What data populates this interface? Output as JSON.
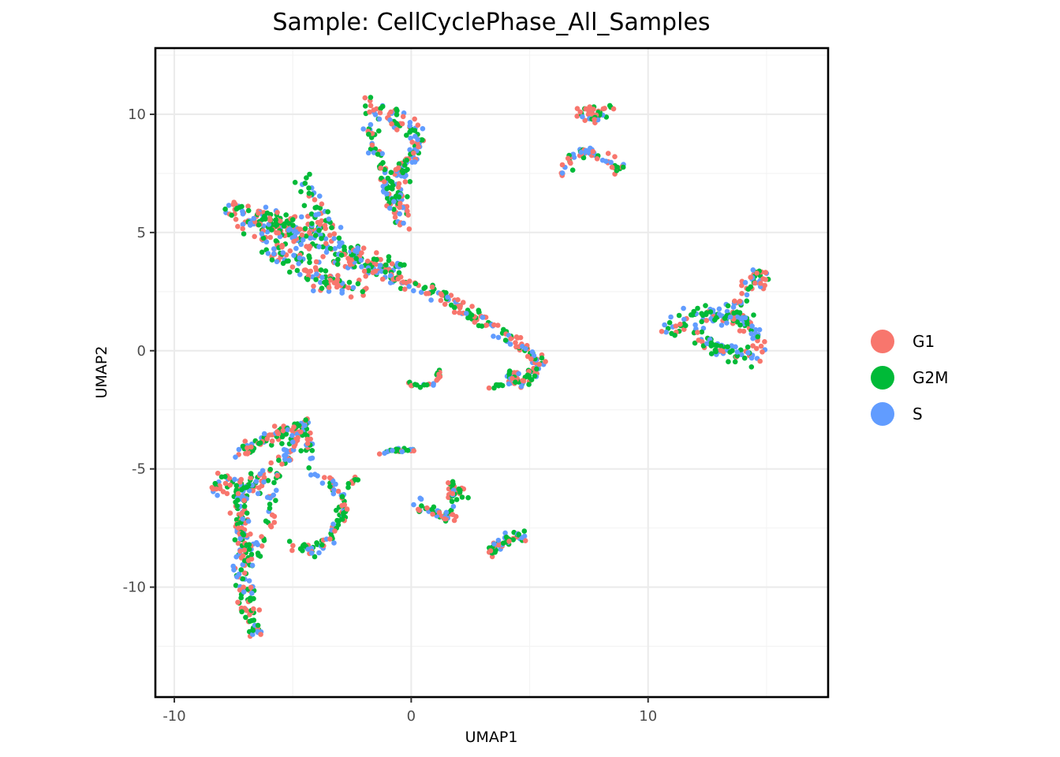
{
  "chart_data": {
    "type": "scatter",
    "title": "Sample: CellCyclePhase_All_Samples",
    "xlabel": "UMAP1",
    "ylabel": "UMAP2",
    "xlim": [
      -10.8,
      17.6
    ],
    "ylim": [
      -14.65,
      12.8
    ],
    "x_ticks": [
      -10,
      0,
      10
    ],
    "y_ticks": [
      10,
      5,
      0,
      -5,
      -10
    ],
    "x_tick_labels": [
      "-10",
      "0",
      "10"
    ],
    "y_tick_labels": [
      "10",
      "5",
      "0",
      "-5",
      "-10"
    ],
    "grid": true,
    "legend_position": "right",
    "series": [
      {
        "name": "G1",
        "color": "#F8766D"
      },
      {
        "name": "G2M",
        "color": "#00BA38"
      },
      {
        "name": "S",
        "color": "#619CFF"
      }
    ],
    "clusters": [
      {
        "path": [
          [
            -1.8,
            10.4
          ],
          [
            -1.0,
            10.0
          ],
          [
            -0.5,
            9.6
          ],
          [
            0.2,
            9.3
          ],
          [
            0.3,
            8.6
          ],
          [
            -0.2,
            8.0
          ],
          [
            -0.5,
            7.2
          ],
          [
            -0.5,
            6.2
          ],
          [
            -0.3,
            5.4
          ]
        ],
        "n": 150,
        "spread": 0.35,
        "mix": [
          0.35,
          0.35,
          0.3
        ]
      },
      {
        "path": [
          [
            -1.9,
            9.5
          ],
          [
            -1.5,
            8.6
          ],
          [
            -1.2,
            8.0
          ],
          [
            -1.0,
            7.2
          ],
          [
            -0.8,
            6.4
          ],
          [
            -0.6,
            5.6
          ]
        ],
        "n": 60,
        "spread": 0.3,
        "mix": [
          0.3,
          0.4,
          0.3
        ]
      },
      {
        "path": [
          [
            -7.4,
            5.8
          ],
          [
            -6.6,
            5.7
          ],
          [
            -5.6,
            5.3
          ],
          [
            -4.6,
            5.0
          ],
          [
            -3.6,
            4.6
          ],
          [
            -2.6,
            4.0
          ],
          [
            -1.6,
            3.6
          ],
          [
            -0.6,
            3.2
          ]
        ],
        "n": 300,
        "spread": 0.55,
        "mix": [
          0.3,
          0.4,
          0.3
        ]
      },
      {
        "path": [
          [
            -6.2,
            4.8
          ],
          [
            -5.2,
            3.8
          ],
          [
            -4.0,
            3.2
          ],
          [
            -3.0,
            2.8
          ],
          [
            -2.0,
            2.6
          ]
        ],
        "n": 120,
        "spread": 0.4,
        "mix": [
          0.35,
          0.35,
          0.3
        ]
      },
      {
        "path": [
          [
            -4.6,
            7.3
          ],
          [
            -4.3,
            6.6
          ],
          [
            -3.9,
            6.0
          ],
          [
            -3.5,
            5.2
          ]
        ],
        "n": 40,
        "spread": 0.35,
        "mix": [
          0.3,
          0.4,
          0.3
        ]
      },
      {
        "path": [
          [
            -0.6,
            3.0
          ],
          [
            0.6,
            2.6
          ],
          [
            1.6,
            2.2
          ],
          [
            2.6,
            1.5
          ],
          [
            3.4,
            1.0
          ],
          [
            4.2,
            0.4
          ],
          [
            4.9,
            0.1
          ]
        ],
        "n": 110,
        "spread": 0.25,
        "mix": [
          0.35,
          0.4,
          0.25
        ]
      },
      {
        "path": [
          [
            4.8,
            0.2
          ],
          [
            5.4,
            -0.4
          ],
          [
            5.1,
            -1.1
          ],
          [
            4.4,
            -1.4
          ],
          [
            4.1,
            -0.9
          ]
        ],
        "n": 80,
        "spread": 0.25,
        "mix": [
          0.4,
          0.3,
          0.3
        ]
      },
      {
        "path": [
          [
            3.3,
            -1.5
          ],
          [
            3.9,
            -1.5
          ]
        ],
        "n": 8,
        "spread": 0.08,
        "mix": [
          0.1,
          0.9,
          0.0
        ]
      },
      {
        "path": [
          [
            -0.1,
            -1.4
          ],
          [
            0.6,
            -1.45
          ],
          [
            1.1,
            -1.4
          ],
          [
            1.2,
            -0.7
          ]
        ],
        "n": 25,
        "spread": 0.1,
        "mix": [
          0.3,
          0.4,
          0.3
        ]
      },
      {
        "path": [
          [
            7.2,
            10.0
          ],
          [
            7.8,
            9.9
          ],
          [
            8.2,
            10.2
          ]
        ],
        "n": 40,
        "spread": 0.3,
        "mix": [
          0.45,
          0.35,
          0.2
        ]
      },
      {
        "path": [
          [
            6.4,
            7.3
          ],
          [
            6.8,
            8.3
          ],
          [
            7.4,
            8.5
          ],
          [
            8.2,
            8.1
          ],
          [
            8.9,
            7.7
          ]
        ],
        "n": 60,
        "spread": 0.22,
        "mix": [
          0.3,
          0.35,
          0.35
        ]
      },
      {
        "path": [
          [
            10.8,
            0.95
          ],
          [
            11.6,
            1.2
          ],
          [
            12.4,
            1.7
          ],
          [
            13.2,
            1.5
          ],
          [
            14.0,
            1.4
          ],
          [
            14.7,
            0.4
          ],
          [
            14.4,
            -0.2
          ],
          [
            13.4,
            -0.1
          ],
          [
            12.4,
            0.4
          ],
          [
            12.0,
            0.8
          ]
        ],
        "n": 170,
        "spread": 0.32,
        "mix": [
          0.3,
          0.4,
          0.3
        ]
      },
      {
        "path": [
          [
            13.3,
            1.2
          ],
          [
            13.8,
            2.0
          ],
          [
            14.3,
            2.9
          ],
          [
            14.6,
            3.4
          ],
          [
            14.9,
            2.7
          ]
        ],
        "n": 60,
        "spread": 0.28,
        "mix": [
          0.4,
          0.3,
          0.3
        ]
      },
      {
        "path": [
          [
            -8.3,
            -5.6
          ],
          [
            -7.6,
            -5.8
          ],
          [
            -6.8,
            -5.8
          ],
          [
            -6.0,
            -5.2
          ]
        ],
        "n": 80,
        "spread": 0.35,
        "mix": [
          0.35,
          0.35,
          0.3
        ]
      },
      {
        "path": [
          [
            -7.3,
            -4.3
          ],
          [
            -6.6,
            -4.0
          ],
          [
            -5.8,
            -3.6
          ],
          [
            -5.0,
            -3.3
          ],
          [
            -4.2,
            -3.0
          ]
        ],
        "n": 80,
        "spread": 0.25,
        "mix": [
          0.3,
          0.35,
          0.35
        ]
      },
      {
        "path": [
          [
            -5.4,
            -4.6
          ],
          [
            -5.0,
            -3.8
          ],
          [
            -4.6,
            -3.2
          ],
          [
            -4.3,
            -4.3
          ]
        ],
        "n": 60,
        "spread": 0.28,
        "mix": [
          0.3,
          0.3,
          0.4
        ]
      },
      {
        "path": [
          [
            -7.3,
            -6.0
          ],
          [
            -7.2,
            -7.2
          ],
          [
            -7.1,
            -8.3
          ],
          [
            -7.2,
            -9.2
          ],
          [
            -7.0,
            -10.2
          ],
          [
            -6.8,
            -11.3
          ],
          [
            -6.5,
            -12.0
          ]
        ],
        "n": 160,
        "spread": 0.28,
        "mix": [
          0.4,
          0.35,
          0.25
        ]
      },
      {
        "path": [
          [
            -6.3,
            -8.0
          ],
          [
            -6.7,
            -8.3
          ],
          [
            -6.8,
            -9.0
          ]
        ],
        "n": 25,
        "spread": 0.22,
        "mix": [
          0.3,
          0.5,
          0.2
        ]
      },
      {
        "path": [
          [
            -5.5,
            -4.8
          ],
          [
            -5.9,
            -6.0
          ],
          [
            -6.0,
            -7.5
          ]
        ],
        "n": 25,
        "spread": 0.2,
        "mix": [
          0.2,
          0.2,
          0.6
        ]
      },
      {
        "path": [
          [
            -4.1,
            -5.2
          ],
          [
            -3.3,
            -5.7
          ],
          [
            -2.8,
            -6.5
          ],
          [
            -3.0,
            -7.4
          ],
          [
            -3.6,
            -8.0
          ],
          [
            -4.0,
            -8.4
          ],
          [
            -4.7,
            -8.3
          ],
          [
            -5.0,
            -8.2
          ]
        ],
        "n": 90,
        "spread": 0.22,
        "mix": [
          0.3,
          0.4,
          0.3
        ]
      },
      {
        "path": [
          [
            -2.8,
            -5.8
          ],
          [
            -2.2,
            -5.3
          ]
        ],
        "n": 10,
        "spread": 0.12,
        "mix": [
          0.1,
          0.9,
          0.0
        ]
      },
      {
        "path": [
          [
            -1.4,
            -4.3
          ],
          [
            -0.8,
            -4.2
          ],
          [
            0.2,
            -4.2
          ]
        ],
        "n": 25,
        "spread": 0.1,
        "mix": [
          0.3,
          0.4,
          0.3
        ]
      },
      {
        "path": [
          [
            0.2,
            -6.5
          ],
          [
            0.9,
            -6.8
          ],
          [
            1.6,
            -7.1
          ],
          [
            1.8,
            -6.2
          ],
          [
            1.7,
            -5.6
          ],
          [
            2.4,
            -6.1
          ]
        ],
        "n": 70,
        "spread": 0.22,
        "mix": [
          0.35,
          0.4,
          0.25
        ]
      },
      {
        "path": [
          [
            3.3,
            -8.5
          ],
          [
            3.7,
            -8.2
          ],
          [
            4.3,
            -7.9
          ],
          [
            4.8,
            -7.8
          ]
        ],
        "n": 50,
        "spread": 0.2,
        "mix": [
          0.35,
          0.35,
          0.3
        ]
      }
    ]
  }
}
